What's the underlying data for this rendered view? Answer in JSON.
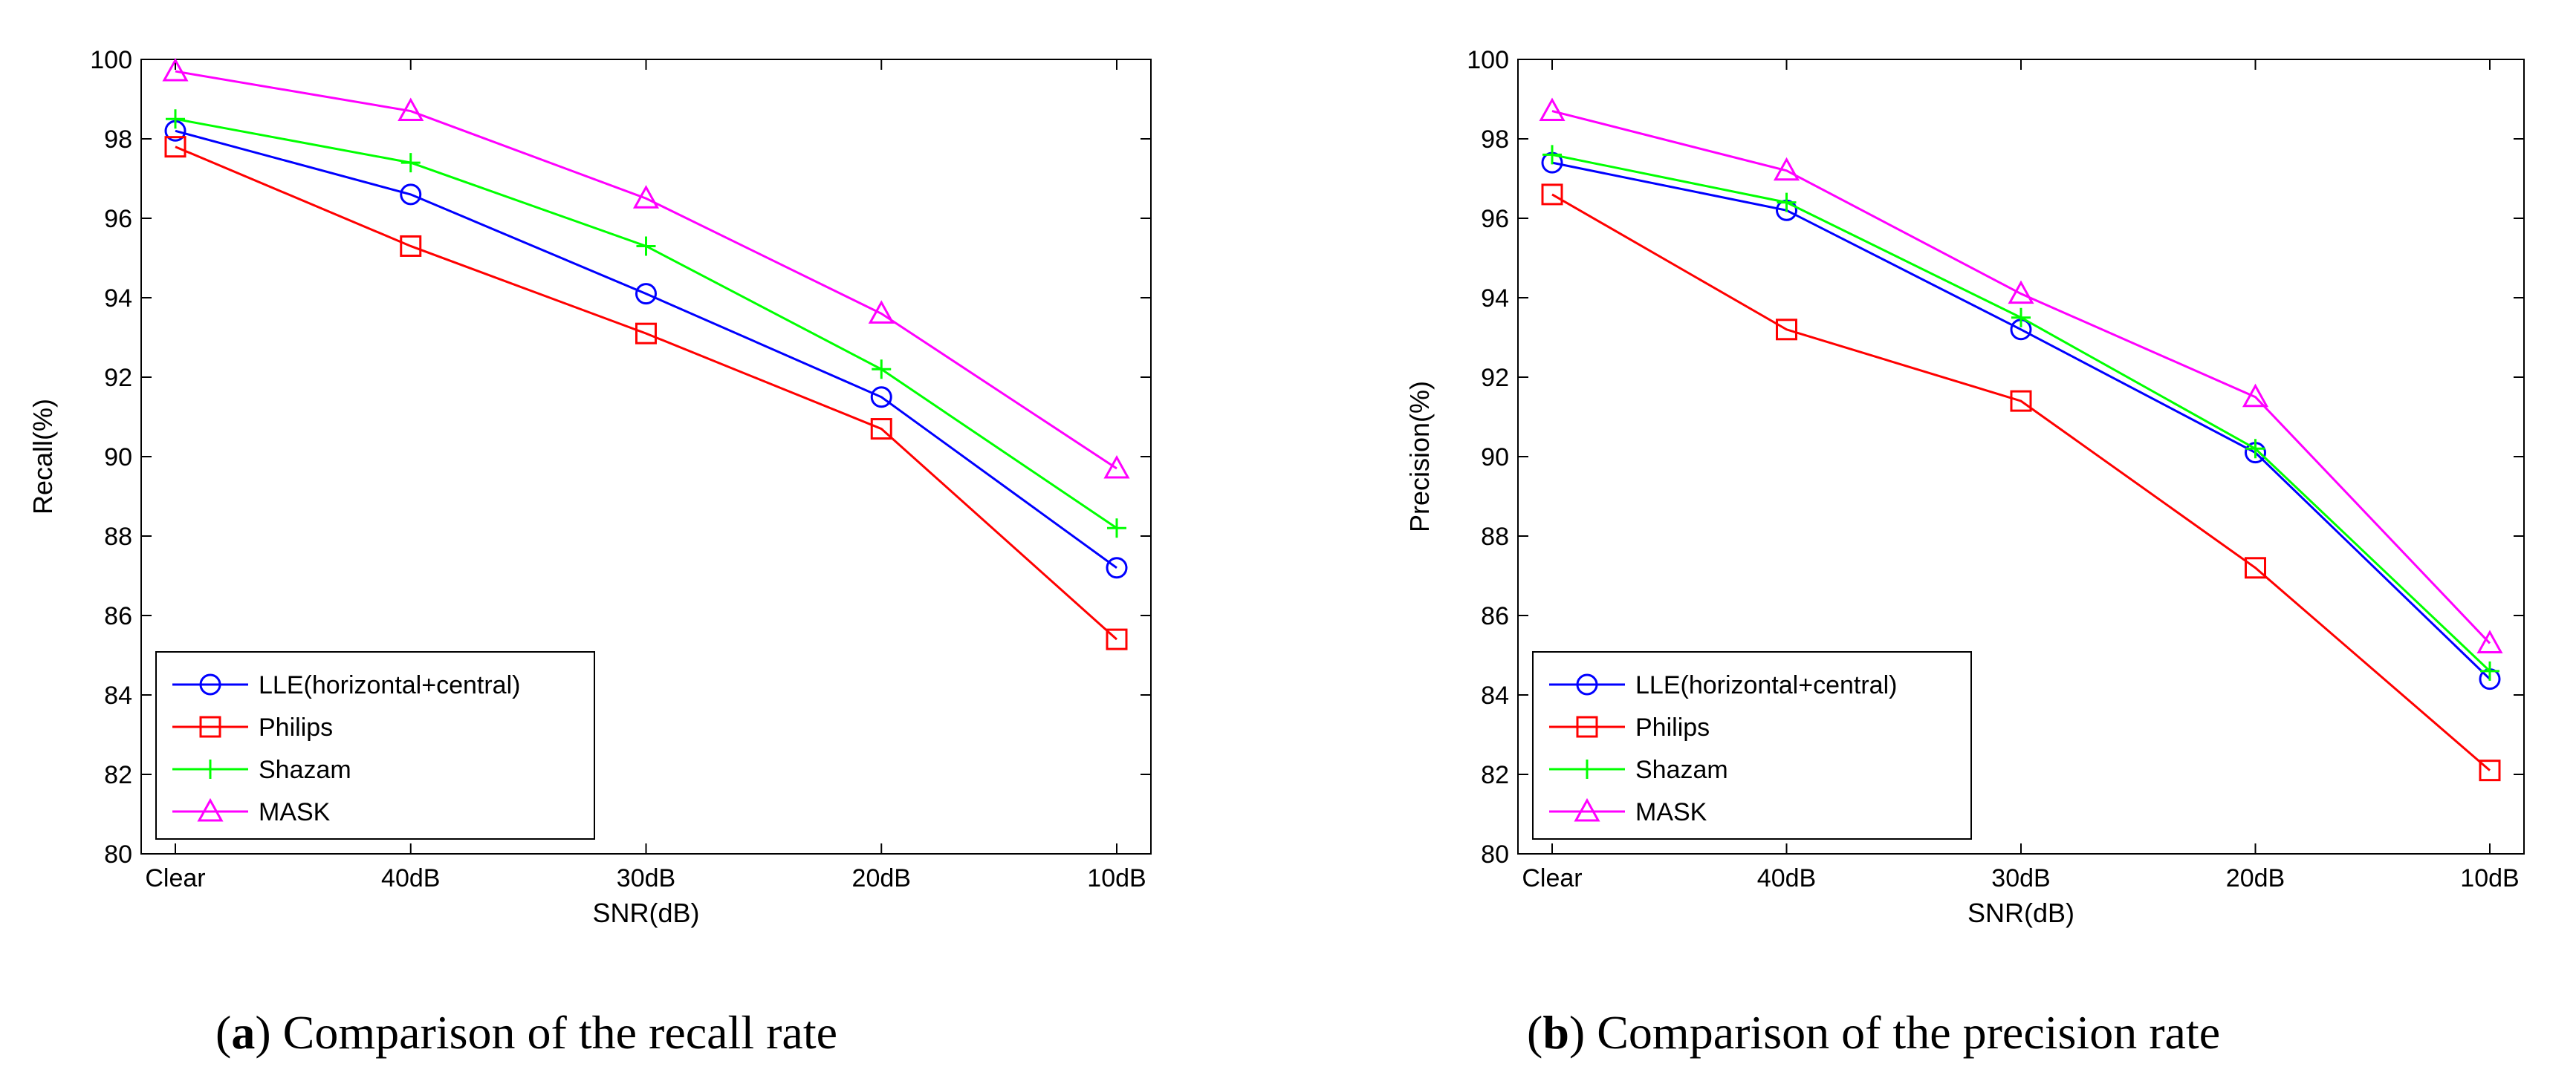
{
  "chart_data": [
    {
      "type": "line",
      "panel": "a",
      "caption_label": "a",
      "caption_text": "Comparison of the recall rate",
      "xlabel": "SNR(dB)",
      "ylabel": "Recall(%)",
      "categories": [
        "Clear",
        "40dB",
        "30dB",
        "20dB",
        "10dB"
      ],
      "ylim": [
        80,
        100
      ],
      "yticks": [
        80,
        82,
        84,
        86,
        88,
        90,
        92,
        94,
        96,
        98,
        100
      ],
      "legend_position": "bottom-left",
      "series": [
        {
          "name": "LLE(horizontal+central)",
          "color": "#0000ff",
          "marker": "circle",
          "values": [
            98.2,
            96.6,
            94.1,
            91.5,
            87.2
          ]
        },
        {
          "name": "Philips",
          "color": "#ff0000",
          "marker": "square",
          "values": [
            97.8,
            95.3,
            93.1,
            90.7,
            85.4
          ]
        },
        {
          "name": "Shazam",
          "color": "#00ff00",
          "marker": "plus",
          "values": [
            98.5,
            97.4,
            95.3,
            92.2,
            88.2
          ]
        },
        {
          "name": "MASK",
          "color": "#ff00ff",
          "marker": "triangle",
          "values": [
            99.7,
            98.7,
            96.5,
            93.6,
            89.7
          ]
        }
      ]
    },
    {
      "type": "line",
      "panel": "b",
      "caption_label": "b",
      "caption_text": "Comparison of the precision rate",
      "xlabel": "SNR(dB)",
      "ylabel": "Precision(%)",
      "categories": [
        "Clear",
        "40dB",
        "30dB",
        "20dB",
        "10dB"
      ],
      "ylim": [
        80,
        100
      ],
      "yticks": [
        80,
        82,
        84,
        86,
        88,
        90,
        92,
        94,
        96,
        98,
        100
      ],
      "legend_position": "bottom-left",
      "series": [
        {
          "name": "LLE(horizontal+central)",
          "color": "#0000ff",
          "marker": "circle",
          "values": [
            97.4,
            96.2,
            93.2,
            90.1,
            84.4
          ]
        },
        {
          "name": "Philips",
          "color": "#ff0000",
          "marker": "square",
          "values": [
            96.6,
            93.2,
            91.4,
            87.2,
            82.1
          ]
        },
        {
          "name": "Shazam",
          "color": "#00ff00",
          "marker": "plus",
          "values": [
            97.6,
            96.4,
            93.5,
            90.2,
            84.6
          ]
        },
        {
          "name": "MASK",
          "color": "#ff00ff",
          "marker": "triangle",
          "values": [
            98.7,
            97.2,
            94.1,
            91.5,
            85.3
          ]
        }
      ]
    }
  ]
}
